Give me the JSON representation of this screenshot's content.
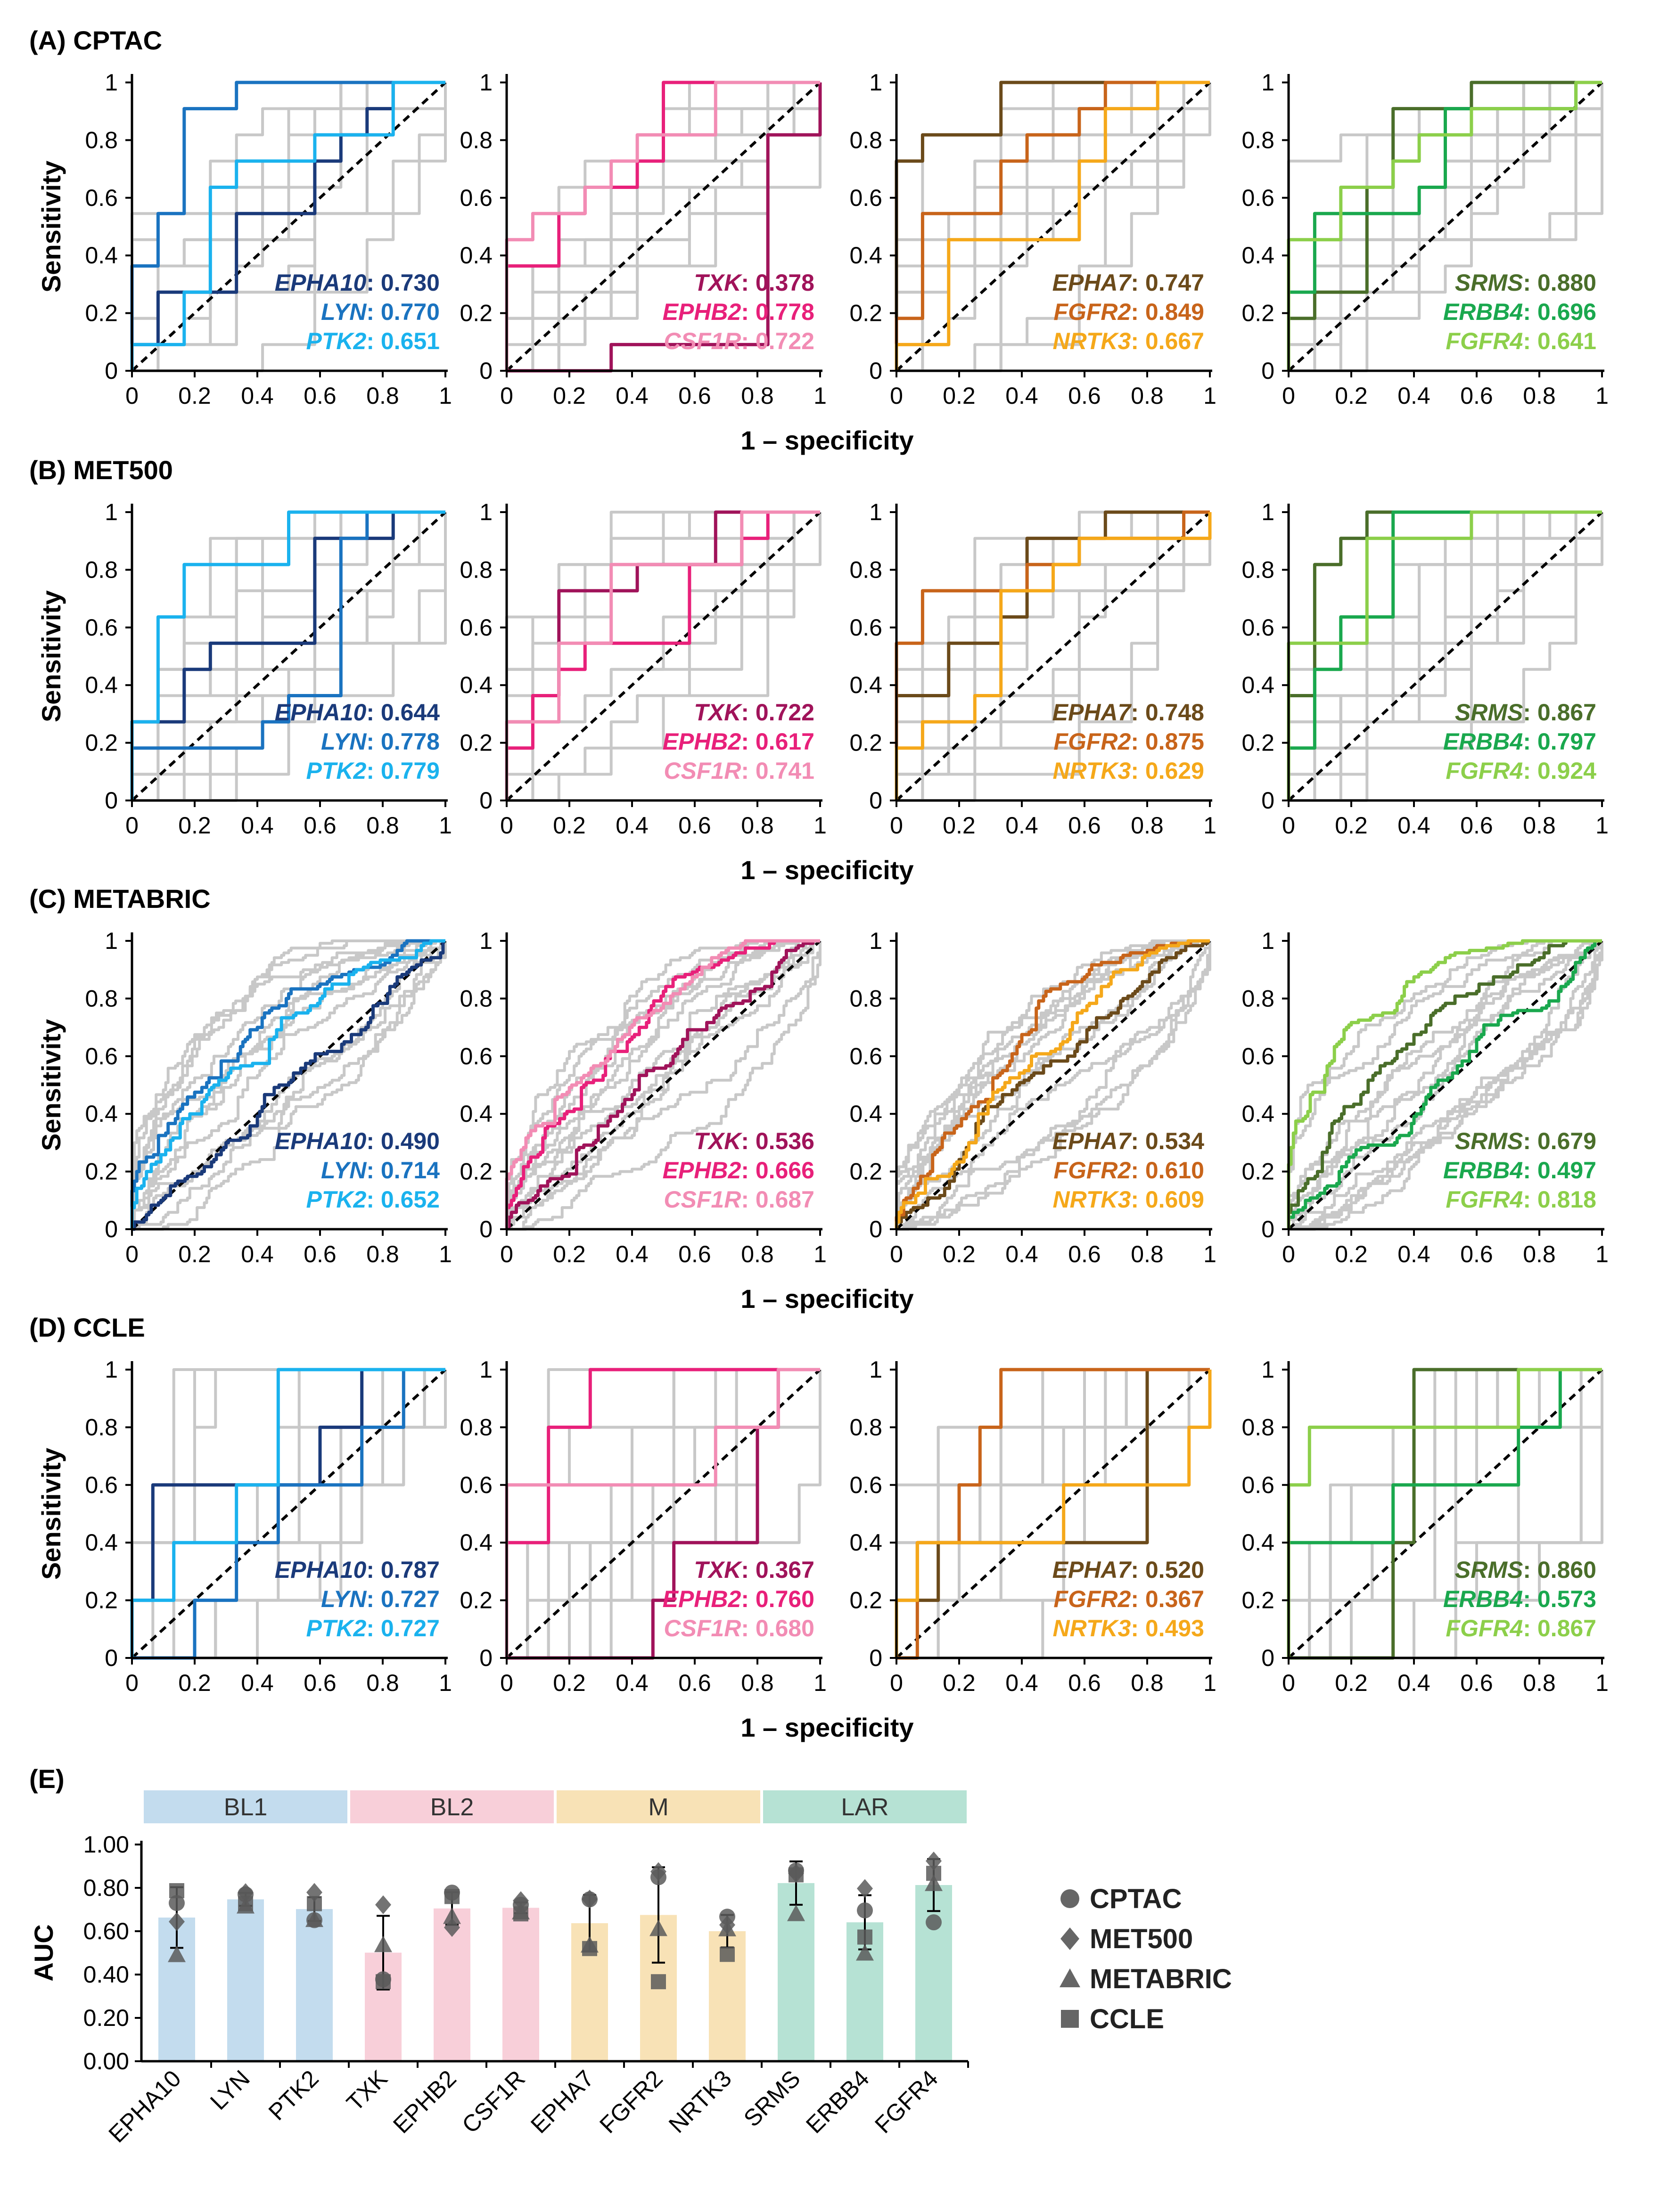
{
  "roc_panels": [
    {
      "label": "(A)",
      "dataset": "CPTAC",
      "xlabel": "1 – specificity",
      "ylabel": "Sensitivity"
    },
    {
      "label": "(B)",
      "dataset": "MET500",
      "xlabel": "1 – specificity",
      "ylabel": "Sensitivity"
    },
    {
      "label": "(C)",
      "dataset": "METABRIC",
      "xlabel": "1 – specificity",
      "ylabel": "Sensitivity"
    },
    {
      "label": "(D)",
      "dataset": "CCLE",
      "xlabel": "1 – specificity",
      "ylabel": "Sensitivity"
    }
  ],
  "roc_axis": {
    "xticks": [
      "0",
      "0.2",
      "0.4",
      "0.6",
      "0.8",
      "1"
    ],
    "yticks": [
      "0",
      "0.2",
      "0.4",
      "0.6",
      "0.8",
      "1"
    ]
  },
  "groups": [
    {
      "subtype": "BL1",
      "genes": [
        "EPHA10",
        "LYN",
        "PTK2"
      ],
      "colors": [
        "#1a3a7a",
        "#1a73c0",
        "#1ab2ee"
      ],
      "band": "#c3dcee"
    },
    {
      "subtype": "BL2",
      "genes": [
        "TXK",
        "EPHB2",
        "CSF1R"
      ],
      "colors": [
        "#a0135a",
        "#e8207a",
        "#f28cb4"
      ],
      "band": "#f8cfd9"
    },
    {
      "subtype": "M",
      "genes": [
        "EPHA7",
        "FGFR2",
        "NRTK3"
      ],
      "colors": [
        "#6b4a1a",
        "#c8641a",
        "#f5a81a"
      ],
      "band": "#f8e2b6"
    },
    {
      "subtype": "LAR",
      "genes": [
        "SRMS",
        "ERBB4",
        "FGFR4"
      ],
      "colors": [
        "#4a6e2a",
        "#1aa84e",
        "#8ccf4a"
      ],
      "band": "#b6e2d4"
    }
  ],
  "auc_text": {
    "CPTAC": [
      [
        "0.730",
        "0.770",
        "0.651"
      ],
      [
        "0.378",
        "0.778",
        "0.722"
      ],
      [
        "0.747",
        "0.849",
        "0.667"
      ],
      [
        "0.880",
        "0.696",
        "0.641"
      ]
    ],
    "MET500": [
      [
        "0.644",
        "0.778",
        "0.779"
      ],
      [
        "0.722",
        "0.617",
        "0.741"
      ],
      [
        "0.748",
        "0.875",
        "0.629"
      ],
      [
        "0.867",
        "0.797",
        "0.924"
      ]
    ],
    "METABRIC": [
      [
        "0.490",
        "0.714",
        "0.652"
      ],
      [
        "0.536",
        "0.666",
        "0.687"
      ],
      [
        "0.534",
        "0.610",
        "0.609"
      ],
      [
        "0.679",
        "0.497",
        "0.818"
      ]
    ],
    "CCLE": [
      [
        "0.787",
        "0.727",
        "0.727"
      ],
      [
        "0.367",
        "0.760",
        "0.680"
      ],
      [
        "0.520",
        "0.367",
        "0.493"
      ],
      [
        "0.860",
        "0.573",
        "0.867"
      ]
    ]
  },
  "chart_data": {
    "type": "bar",
    "panel_label": "(E)",
    "title": "",
    "xlabel": "",
    "ylabel": "AUC",
    "ylim": [
      0,
      1.0
    ],
    "yticks": [
      "0.00",
      "0.20",
      "0.40",
      "0.60",
      "0.80",
      "1.00"
    ],
    "categories": [
      "EPHA10",
      "LYN",
      "PTK2",
      "TXK",
      "EPHB2",
      "CSF1R",
      "EPHA7",
      "FGFR2",
      "NRTK3",
      "SRMS",
      "ERBB4",
      "FGFR4"
    ],
    "subtype_labels": [
      "BL1",
      "BL2",
      "M",
      "LAR"
    ],
    "bar_values": [
      0.663,
      0.747,
      0.702,
      0.501,
      0.705,
      0.708,
      0.637,
      0.675,
      0.6,
      0.822,
      0.641,
      0.813
    ],
    "error_sd": [
      0.14,
      0.03,
      0.055,
      0.17,
      0.075,
      0.025,
      0.13,
      0.22,
      0.075,
      0.1,
      0.125,
      0.12
    ],
    "series": [
      {
        "name": "CPTAC",
        "marker": "circle",
        "values": [
          0.73,
          0.77,
          0.651,
          0.378,
          0.778,
          0.722,
          0.747,
          0.849,
          0.667,
          0.88,
          0.696,
          0.641
        ]
      },
      {
        "name": "MET500",
        "marker": "diamond",
        "values": [
          0.644,
          0.778,
          0.779,
          0.722,
          0.617,
          0.741,
          0.748,
          0.875,
          0.629,
          0.867,
          0.797,
          0.924
        ]
      },
      {
        "name": "METABRIC",
        "marker": "triangle",
        "values": [
          0.49,
          0.714,
          0.652,
          0.536,
          0.666,
          0.687,
          0.534,
          0.61,
          0.609,
          0.679,
          0.497,
          0.818
        ]
      },
      {
        "name": "CCLE",
        "marker": "square",
        "values": [
          0.787,
          0.727,
          0.727,
          0.367,
          0.76,
          0.68,
          0.52,
          0.367,
          0.493,
          0.86,
          0.573,
          0.867
        ]
      }
    ],
    "legend_position": "right"
  }
}
